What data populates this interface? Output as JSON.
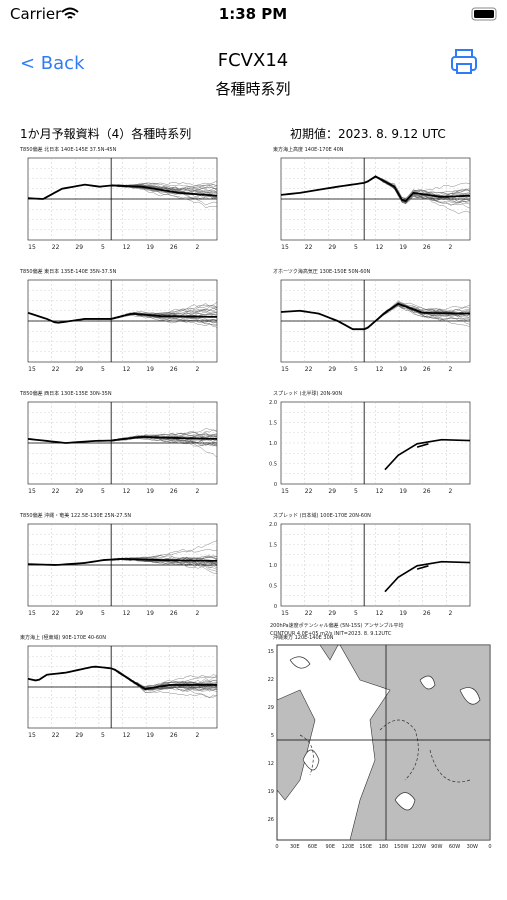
{
  "status": {
    "carrier": "Carrier",
    "time": "1:38 PM"
  },
  "nav": {
    "back": "< Back",
    "title": "FCVX14",
    "subtitle": "各種時系列"
  },
  "doc": {
    "heading": "1か月予報資料（4）各種時系列",
    "init": "初期値：2023. 8. 9.12 UTC",
    "xlabels": [
      "15",
      "22",
      "29",
      "5",
      "12",
      "19",
      "26",
      "2"
    ],
    "panels": [
      {
        "title": "T850偏差 北日本 140E-145E 37.5N-45N"
      },
      {
        "title": "東方海上高度 140E-170E 40N"
      },
      {
        "title": "T850偏差 東日本 135E-140E 35N-37.5N"
      },
      {
        "title": "オホーツク海高気圧 130E-150E 50N-60N"
      },
      {
        "title": "T850偏差 西日本 130E-135E 30N-35N"
      },
      {
        "title": "スプレッド (北半球) 20N-90N",
        "yticks": [
          "2.0",
          "1.5",
          "1.0",
          "0.5",
          "0"
        ]
      },
      {
        "title": "T850偏差 沖縄・奄美 122.5E-130E 25N-27.5N"
      },
      {
        "title": "スプレッド (日本域) 100E-170E 20N-60N",
        "yticks": [
          "2.0",
          "1.5",
          "1.0",
          "0.5",
          "0"
        ]
      },
      {
        "title": "東方海上 (極東域) 90E-170E 40-60N"
      },
      {
        "title": "沖縄東方 120E-140E 30N"
      }
    ],
    "map": {
      "title": "200hPa速度ポテンシャル偏差 (5N-15S) アンサンブル平均",
      "subtitle": "CONTOUR 4.0E+05 m2/s  INIT=2023. 8. 9.12UTC",
      "ylabels": [
        "15",
        "22",
        "29",
        "5",
        "12",
        "19",
        "26"
      ],
      "xlabels": [
        "0",
        "30E",
        "60E",
        "90E",
        "120E",
        "150E",
        "180",
        "150W",
        "120W",
        "90W",
        "60W",
        "30W",
        "0"
      ]
    }
  }
}
